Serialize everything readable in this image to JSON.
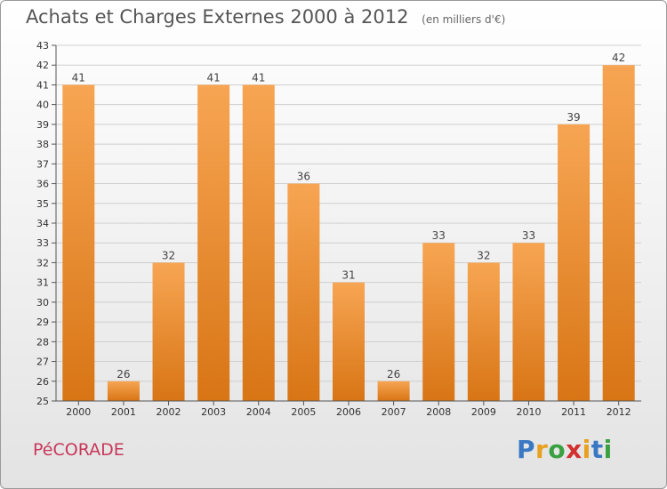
{
  "header": {
    "title": "Achats et Charges Externes 2000 à 2012",
    "subtitle": "(en milliers d'€)"
  },
  "footer": {
    "town": "PéCORADE",
    "logo_letters": [
      "P",
      "r",
      "o",
      "x",
      "i",
      "t",
      "i"
    ],
    "logo_colors": [
      "#3a78c4",
      "#e8a020",
      "#3aa040",
      "#d23030",
      "#e8a020",
      "#3a78c4",
      "#3aa040"
    ]
  },
  "colors": {
    "bar_light": "#f7a553",
    "bar_dark": "#d87515",
    "grid": "#cfcfcf"
  },
  "chart_data": {
    "type": "bar",
    "categories": [
      "2000",
      "2001",
      "2002",
      "2003",
      "2004",
      "2005",
      "2006",
      "2007",
      "2008",
      "2009",
      "2010",
      "2011",
      "2012"
    ],
    "values": [
      41,
      26,
      32,
      41,
      41,
      36,
      31,
      26,
      33,
      32,
      33,
      39,
      42
    ],
    "title": "Achats et Charges Externes 2000 à 2012",
    "ylim": [
      25,
      43
    ],
    "yticks": [
      25,
      26,
      27,
      28,
      29,
      30,
      31,
      32,
      33,
      34,
      35,
      36,
      37,
      38,
      39,
      40,
      41,
      42,
      43
    ],
    "grid": true
  }
}
